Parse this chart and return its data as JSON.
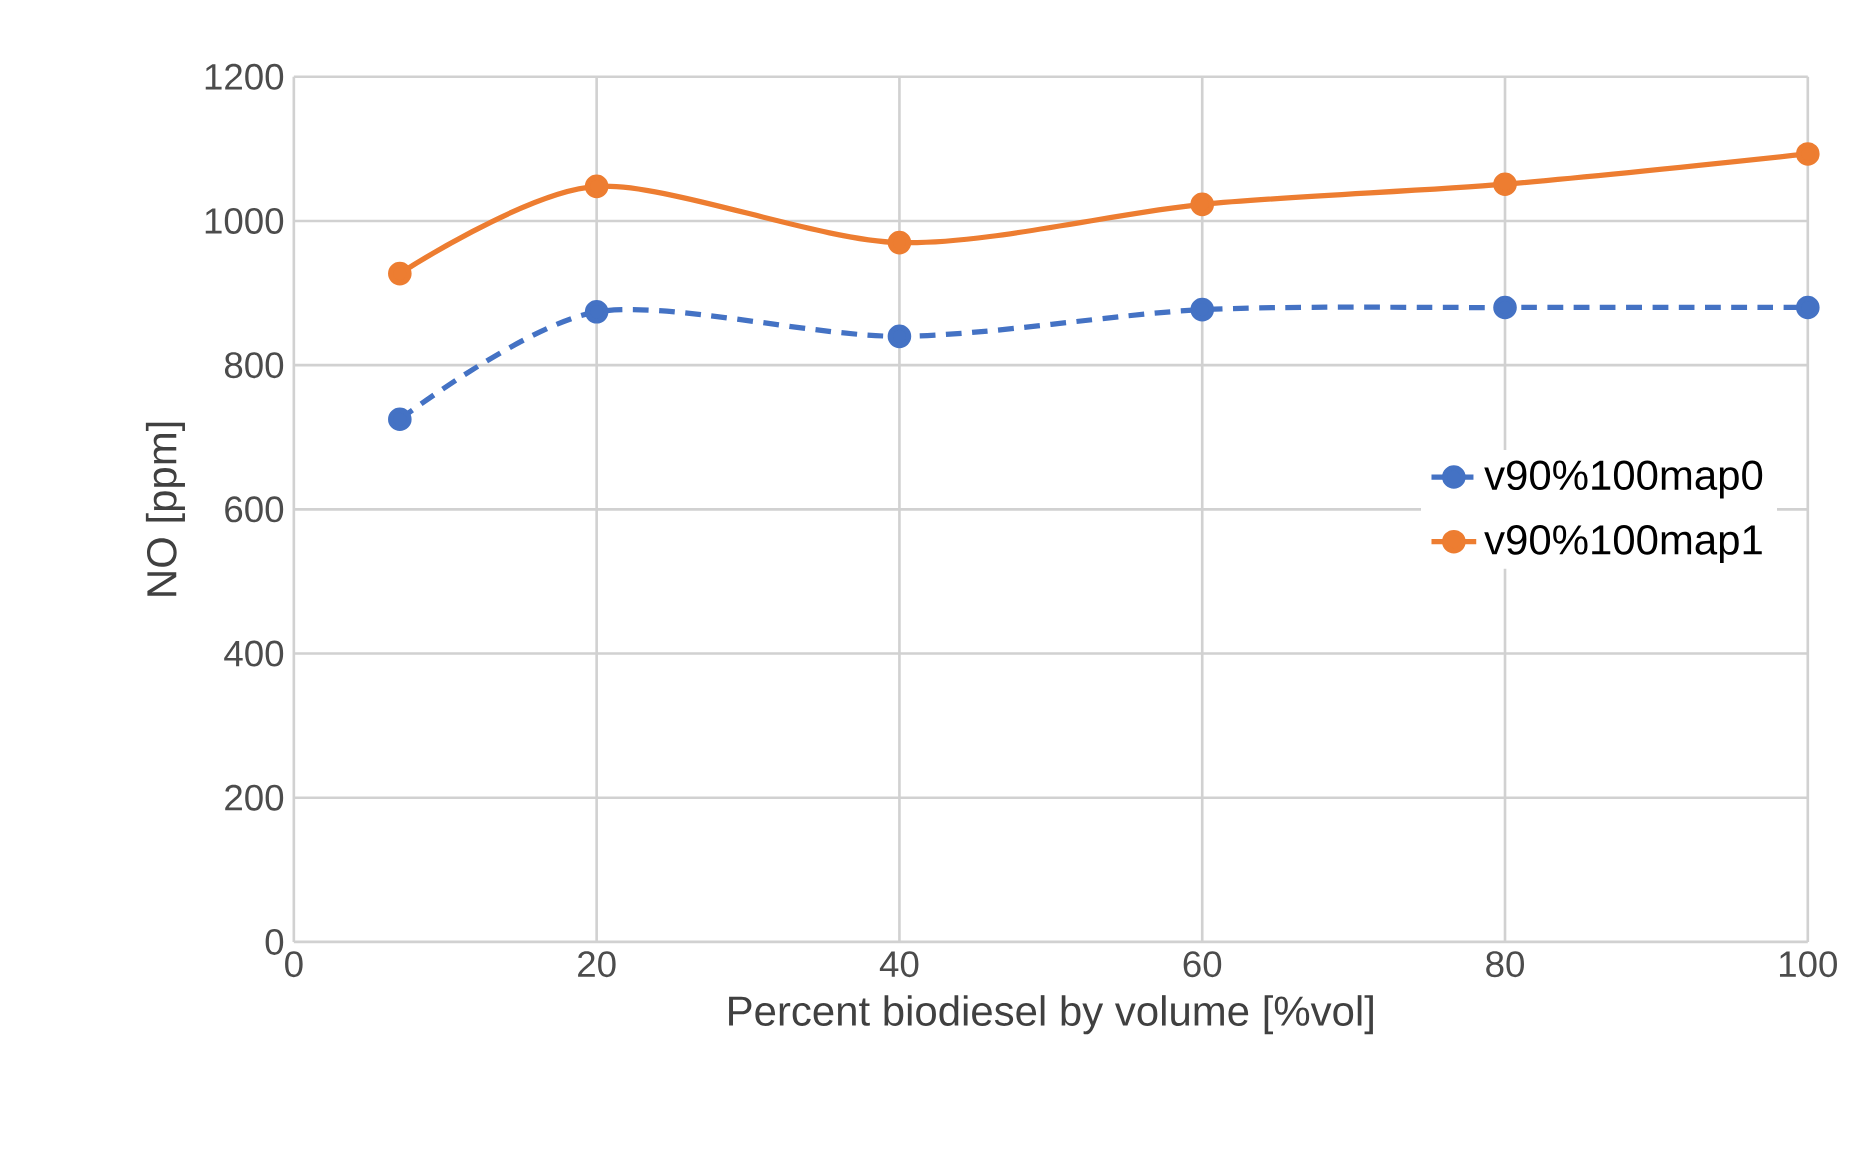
{
  "chart_data": {
    "type": "line",
    "xlabel": "Percent biodiesel by volume [%vol]",
    "ylabel": "NO [ppm]",
    "x": [
      7,
      20,
      40,
      60,
      80,
      100
    ],
    "series": [
      {
        "name": "v90%100map0",
        "color": "#4472c4",
        "line_style": "dashed",
        "marker": "circle",
        "values": [
          725,
          874,
          840,
          877,
          880,
          880
        ]
      },
      {
        "name": "v90%100map1",
        "color": "#ed7d31",
        "line_style": "solid",
        "marker": "circle",
        "values": [
          927,
          1048,
          970,
          1023,
          1051,
          1093
        ]
      }
    ],
    "xlim": [
      0,
      100
    ],
    "xticks": [
      0,
      20,
      40,
      60,
      80,
      100
    ],
    "ylim": [
      0,
      1200
    ],
    "yticks": [
      0,
      200,
      400,
      600,
      800,
      1000,
      1200
    ],
    "grid": true,
    "legend": "right"
  }
}
